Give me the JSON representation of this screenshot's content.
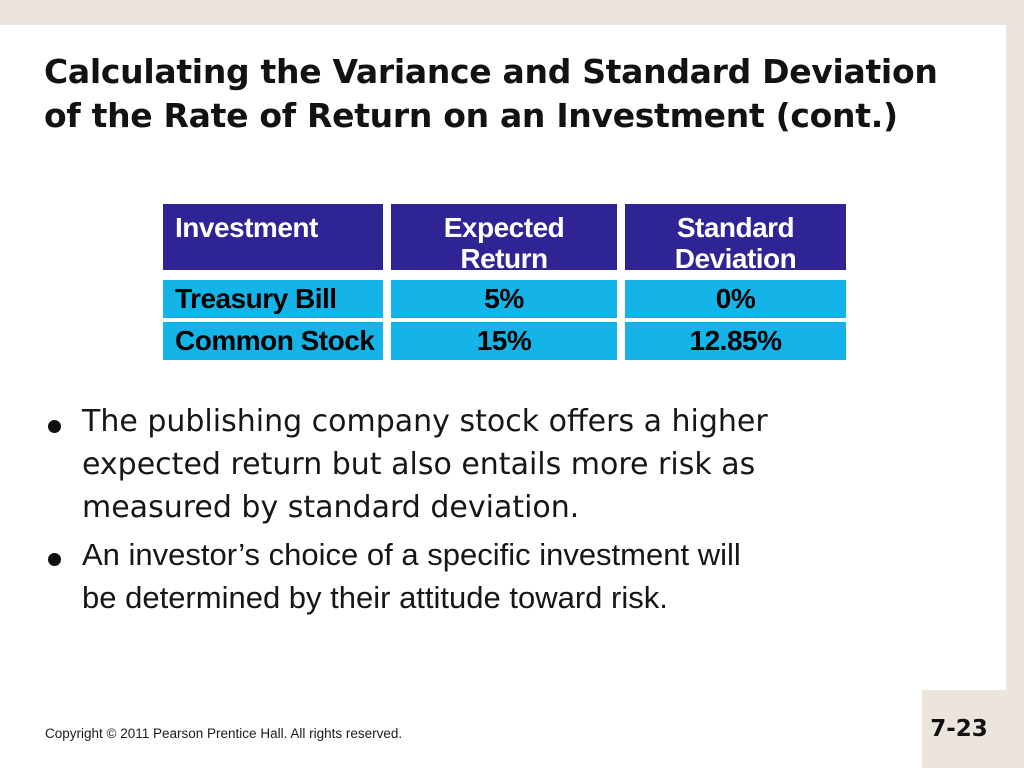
{
  "slide": {
    "title_lines": [
      "Calculating the Variance and Standard Deviation",
      "of the Rate of Return on an Investment (cont.)"
    ],
    "table": {
      "headers": [
        "Investment",
        "Expected\nReturn",
        "Standard\nDeviation"
      ],
      "rows": [
        [
          "Treasury Bill",
          "5%",
          "0%"
        ],
        [
          "Common Stock",
          "15%",
          "12.85%"
        ]
      ]
    },
    "bullet_char": "•",
    "bullets": [
      {
        "lines": [
          "The publishing company stock offers a higher",
          "expected return but also entails more risk as",
          "measured by standard deviation."
        ]
      },
      {
        "lines": [
          "An investor’s choice of a specific investment will",
          "be determined by their attitude toward risk."
        ]
      }
    ],
    "footer": {
      "copyright": "Copyright © 2011 Pearson Prentice Hall. All rights reserved.",
      "page_number": "7-23"
    },
    "colors": {
      "frame": "#ece5dd",
      "table_header_bg": "#2e2494",
      "table_header_text": "#ffffff",
      "table_row_bg": "#14b3e8",
      "text": "#121212"
    }
  }
}
